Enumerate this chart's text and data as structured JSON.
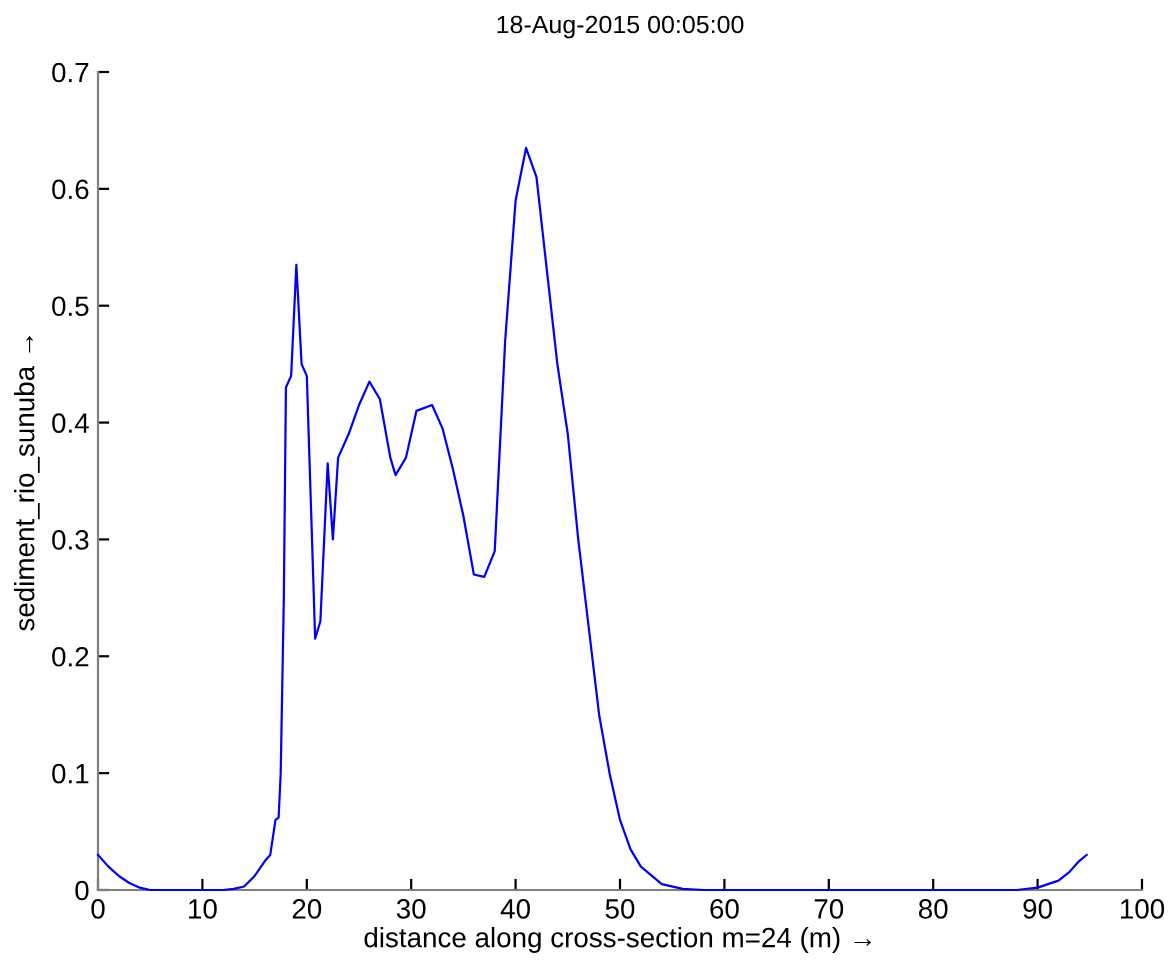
{
  "chart_data": {
    "type": "line",
    "title": "18-Aug-2015 00:05:00",
    "xlabel": "distance along cross-section m=24 (m) →",
    "ylabel": "sediment_rio_sunuba →",
    "series": [
      {
        "color": "#0000ff",
        "x": [
          0,
          1,
          2,
          3,
          4,
          5,
          8,
          12,
          13,
          14,
          15,
          16,
          16.5,
          17,
          17.3,
          17.5,
          17.8,
          18,
          18.5,
          19,
          19.5,
          20,
          20.5,
          20.8,
          21.3,
          22,
          22.5,
          23,
          24,
          25,
          26,
          27,
          28,
          28.5,
          29.5,
          30.5,
          32,
          33,
          34,
          35,
          36,
          37,
          38,
          39,
          40,
          41,
          42,
          43,
          44,
          45,
          46,
          47,
          48,
          49,
          50,
          51,
          52,
          54,
          56,
          58,
          70,
          80,
          88,
          90,
          92,
          93,
          94,
          94.7
        ],
        "values": [
          0.03,
          0.02,
          0.012,
          0.006,
          0.002,
          0,
          0,
          0,
          0.001,
          0.003,
          0.012,
          0.025,
          0.03,
          0.06,
          0.062,
          0.1,
          0.25,
          0.43,
          0.44,
          0.535,
          0.45,
          0.44,
          0.3,
          0.215,
          0.23,
          0.365,
          0.3,
          0.37,
          0.39,
          0.415,
          0.435,
          0.42,
          0.37,
          0.355,
          0.37,
          0.41,
          0.415,
          0.395,
          0.36,
          0.32,
          0.27,
          0.268,
          0.29,
          0.47,
          0.59,
          0.635,
          0.61,
          0.53,
          0.45,
          0.39,
          0.3,
          0.225,
          0.15,
          0.1,
          0.06,
          0.035,
          0.02,
          0.005,
          0.001,
          0,
          0,
          0,
          0,
          0.002,
          0.008,
          0.015,
          0.025,
          0.03
        ]
      }
    ],
    "xlim": [
      0,
      100
    ],
    "xticks": [
      0,
      10,
      20,
      30,
      40,
      50,
      60,
      70,
      80,
      90,
      100
    ],
    "ylim": [
      0,
      0.7
    ],
    "yticks": [
      0,
      0.1,
      0.2,
      0.3,
      0.4,
      0.5,
      0.6,
      0.7
    ],
    "grid": false
  }
}
